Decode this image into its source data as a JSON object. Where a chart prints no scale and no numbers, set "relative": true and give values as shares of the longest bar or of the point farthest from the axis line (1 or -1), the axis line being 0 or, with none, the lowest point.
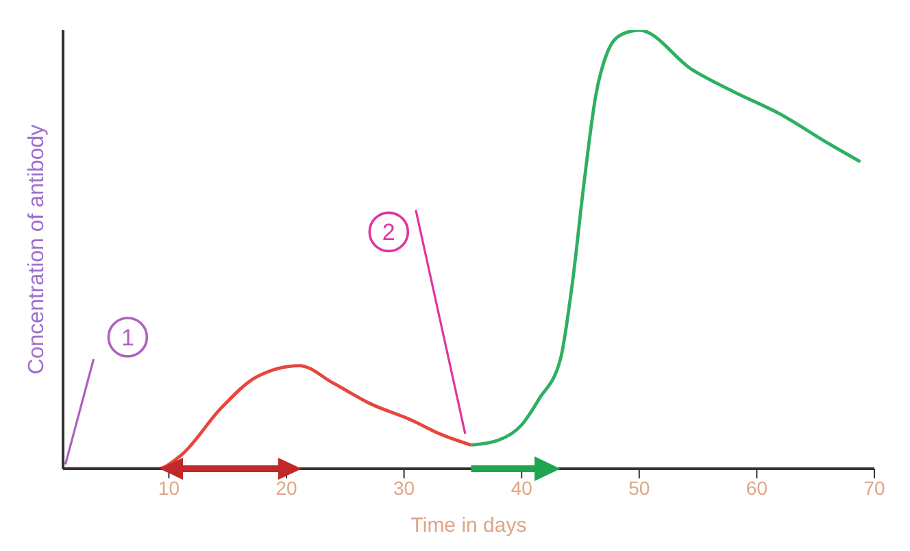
{
  "chart_data": {
    "type": "line",
    "relative": true,
    "xlabel": "Time in days",
    "ylabel": "Concentration of antibody",
    "xlim": [
      1,
      70
    ],
    "xticks": [
      10,
      20,
      30,
      40,
      50,
      60,
      70
    ],
    "marker": "none",
    "line_style": "solid",
    "series": [
      {
        "color": "#e8453c",
        "x": [
          1,
          9,
          11,
          14.5,
          17.5,
          21.1,
          24,
          27,
          30.7,
          33,
          35.7
        ],
        "values": [
          0,
          0,
          0.03,
          0.14,
          0.21,
          0.235,
          0.195,
          0.15,
          0.11,
          0.08,
          0.054
        ]
      },
      {
        "color": "#2eaf62",
        "x": [
          35.7,
          38,
          40,
          41.5,
          43.3,
          44.3,
          45.3,
          46.3,
          47.3,
          48.5,
          50,
          54.5,
          58,
          61.9,
          66.2,
          68.8
        ],
        "values": [
          0.054,
          0.065,
          0.1,
          0.16,
          0.25,
          0.42,
          0.65,
          0.85,
          0.95,
          0.99,
          1,
          0.91,
          0.86,
          0.81,
          0.74,
          0.7
        ]
      }
    ],
    "annotations": [
      {
        "text": "1",
        "x": 6.5,
        "y": 0.3
      },
      {
        "text": "2",
        "x": 28.7,
        "y": 0.54
      }
    ]
  }
}
